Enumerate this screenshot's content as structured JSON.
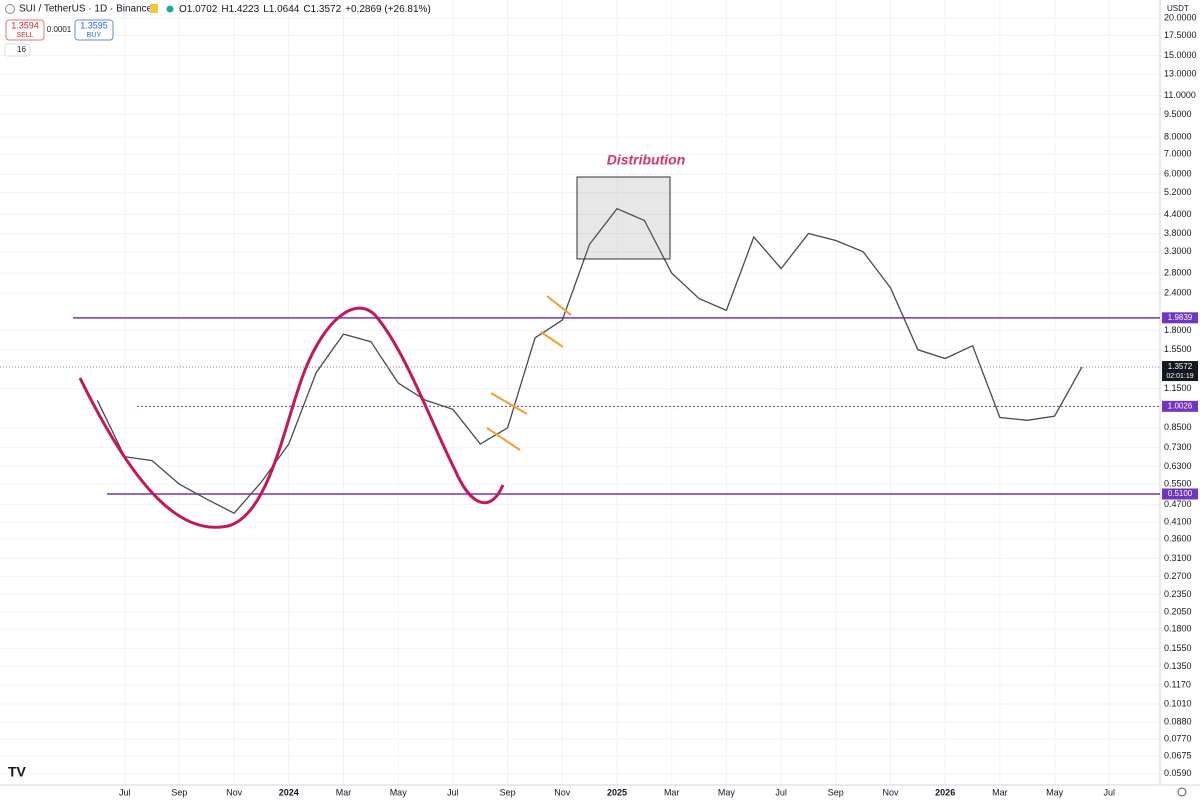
{
  "header": {
    "symbol": "SUI / TetherUS · 1D · Binance",
    "ohlc": [
      "O1.0702",
      "H1.4223",
      "L1.0644",
      "C1.3572",
      "+0.2869 (+26.81%)"
    ],
    "sell_price": "1.3594",
    "sell": "SELL",
    "spread": "0.0001",
    "buy_price": "1.3595",
    "buy": "BUY",
    "indicators": "16"
  },
  "chart_data": {
    "type": "line",
    "log_scale": true,
    "grid": true,
    "currency": "USDT",
    "annotation": "Distribution",
    "countdown": "02:01:19",
    "x": [
      "2023-05",
      "2023-06",
      "2023-07",
      "2023-08",
      "2023-09",
      "2023-10",
      "2023-11",
      "2023-12",
      "2024-01",
      "2024-02",
      "2024-03",
      "2024-04",
      "2024-05",
      "2024-06",
      "2024-07",
      "2024-08",
      "2024-09",
      "2024-10",
      "2024-11",
      "2024-12",
      "2025-01",
      "2025-02",
      "2025-03",
      "2025-04",
      "2025-05",
      "2025-06",
      "2025-07",
      "2025-08",
      "2025-09",
      "2025-10",
      "2025-11",
      "2025-12",
      "2026-01",
      "2026-02",
      "2026-03",
      "2026-04",
      "2026-05"
    ],
    "series": [
      {
        "name": "SUI / TetherUS",
        "color": "#4a4a4a",
        "values": [
          1.05,
          0.68,
          0.66,
          0.55,
          0.49,
          0.44,
          0.56,
          0.75,
          1.3,
          1.75,
          1.65,
          1.2,
          1.05,
          0.98,
          0.75,
          0.85,
          1.7,
          1.95,
          3.5,
          4.6,
          4.2,
          2.8,
          2.3,
          2.1,
          3.7,
          2.9,
          3.8,
          3.6,
          3.3,
          2.5,
          1.55,
          1.45,
          1.6,
          0.92,
          0.9,
          0.93,
          1.3572
        ]
      }
    ],
    "levels": [
      1.9839,
      1.0026,
      {
        "value": 0.51,
        "label": "0.5100"
      }
    ],
    "level_color": "#6f35c0",
    "ylim": [
      0.0541,
      23.0
    ],
    "yticks": [
      {
        "value": 20,
        "label": "20.0000"
      },
      {
        "value": 17.5,
        "label": "17.5000"
      },
      {
        "value": 15,
        "label": "15.0000"
      },
      {
        "value": 13,
        "label": "13.0000"
      },
      {
        "value": 11,
        "label": "11.0000"
      },
      {
        "value": 9.5,
        "label": "9.5000"
      },
      {
        "value": 8,
        "label": "8.0000"
      },
      {
        "value": 7,
        "label": "7.0000"
      },
      {
        "value": 6,
        "label": "6.0000"
      },
      {
        "value": 5.2,
        "label": "5.2000"
      },
      {
        "value": 4.4,
        "label": "4.4000"
      },
      {
        "value": 3.8,
        "label": "3.8000"
      },
      {
        "value": 3.3,
        "label": "3.3000"
      },
      {
        "value": 2.8,
        "label": "2.8000"
      },
      {
        "value": 2.4,
        "label": "2.4000"
      },
      {
        "value": 1.8,
        "label": "1.8000"
      },
      {
        "value": 1.55,
        "label": "1.5500"
      },
      {
        "value": 1.15,
        "label": "1.1500"
      },
      {
        "value": 0.85,
        "label": "0.8500"
      },
      {
        "value": 0.73,
        "label": "0.7300"
      },
      {
        "value": 0.63,
        "label": "0.6300"
      },
      {
        "value": 0.55,
        "label": "0.5500"
      },
      {
        "value": 0.47,
        "label": "0.4700"
      },
      {
        "value": 0.41,
        "label": "0.4100"
      },
      {
        "value": 0.36,
        "label": "0.3600"
      },
      {
        "value": 0.31,
        "label": "0.3100"
      },
      {
        "value": 0.27,
        "label": "0.2700"
      },
      {
        "value": 0.235,
        "label": "0.2350"
      },
      {
        "value": 0.205,
        "label": "0.2050"
      },
      {
        "value": 0.18,
        "label": "0.1800"
      },
      {
        "value": 0.155,
        "label": "0.1550"
      },
      {
        "value": 0.135,
        "label": "0.1350"
      },
      {
        "value": 0.117,
        "label": "0.1170"
      },
      {
        "value": 0.101,
        "label": "0.1010"
      },
      {
        "value": 0.088,
        "label": "0.0880"
      },
      {
        "value": 0.077,
        "label": "0.0770"
      },
      {
        "value": 0.0675,
        "label": "0.0675"
      },
      {
        "value": 0.059,
        "label": "0.0590"
      }
    ],
    "xticks": [
      {
        "value": "2023-07",
        "label": "Jul"
      },
      {
        "value": "2023-09",
        "label": "Sep"
      },
      {
        "value": "2023-11",
        "label": "Nov"
      },
      {
        "value": "2024-01",
        "label": "2024"
      },
      {
        "value": "2024-03",
        "label": "Mar"
      },
      {
        "value": "2024-05",
        "label": "May"
      },
      {
        "value": "2024-07",
        "label": "Jul"
      },
      {
        "value": "2024-09",
        "label": "Sep"
      },
      {
        "value": "2024-11",
        "label": "Nov"
      },
      {
        "value": "2025-01",
        "label": "2025"
      },
      {
        "value": "2025-03",
        "label": "Mar"
      },
      {
        "value": "2025-05",
        "label": "May"
      },
      {
        "value": "2025-07",
        "label": "Jul"
      },
      {
        "value": "2025-09",
        "label": "Sep"
      },
      {
        "value": "2025-11",
        "label": "Nov"
      },
      {
        "value": "2026-01",
        "label": "2026"
      },
      {
        "value": "2026-03",
        "label": "Mar"
      },
      {
        "value": "2026-05",
        "label": "May"
      },
      {
        "value": "2026-07",
        "label": "Jul"
      }
    ]
  }
}
